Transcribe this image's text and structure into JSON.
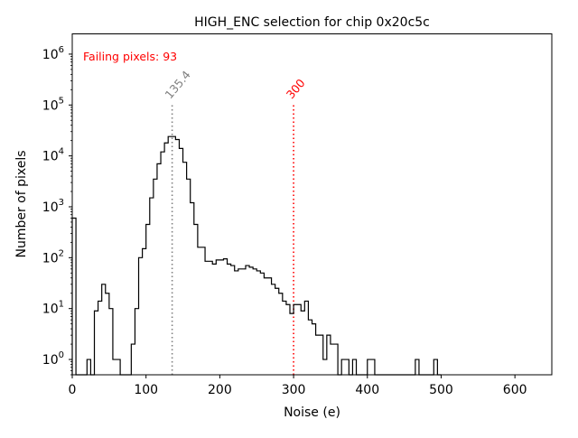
{
  "chart_data": {
    "type": "histogram",
    "title": "HIGH_ENC selection for chip 0x20c5c",
    "xlabel": "Noise (e)",
    "ylabel": "Number of pixels",
    "xlim": [
      0,
      650
    ],
    "ylim": [
      0.5,
      2500000
    ],
    "yscale": "log",
    "x_ticks": [
      0,
      100,
      200,
      300,
      400,
      500,
      600
    ],
    "y_ticks": [
      {
        "value": 1,
        "exp": "0"
      },
      {
        "value": 10,
        "exp": "1"
      },
      {
        "value": 100,
        "exp": "2"
      },
      {
        "value": 1000,
        "exp": "3"
      },
      {
        "value": 10000,
        "exp": "4"
      },
      {
        "value": 100000,
        "exp": "5"
      },
      {
        "value": 1000000,
        "exp": "6"
      }
    ],
    "tick_base": "10",
    "bin_width": 5,
    "bins": [
      [
        0,
        600
      ],
      [
        5,
        0
      ],
      [
        10,
        0
      ],
      [
        15,
        0
      ],
      [
        20,
        1
      ],
      [
        25,
        0
      ],
      [
        30,
        9
      ],
      [
        35,
        14
      ],
      [
        40,
        30
      ],
      [
        45,
        20
      ],
      [
        50,
        10
      ],
      [
        55,
        1
      ],
      [
        60,
        1
      ],
      [
        65,
        0
      ],
      [
        70,
        0
      ],
      [
        75,
        0
      ],
      [
        80,
        2
      ],
      [
        85,
        10
      ],
      [
        90,
        100
      ],
      [
        95,
        150
      ],
      [
        100,
        450
      ],
      [
        105,
        1500
      ],
      [
        110,
        3500
      ],
      [
        115,
        7000
      ],
      [
        120,
        12000
      ],
      [
        125,
        18000
      ],
      [
        130,
        24000
      ],
      [
        135,
        24000
      ],
      [
        140,
        21000
      ],
      [
        145,
        14000
      ],
      [
        150,
        7500
      ],
      [
        155,
        3500
      ],
      [
        160,
        1200
      ],
      [
        165,
        450
      ],
      [
        170,
        160
      ],
      [
        175,
        160
      ],
      [
        180,
        85
      ],
      [
        185,
        85
      ],
      [
        190,
        75
      ],
      [
        195,
        90
      ],
      [
        200,
        90
      ],
      [
        205,
        95
      ],
      [
        210,
        75
      ],
      [
        215,
        70
      ],
      [
        220,
        55
      ],
      [
        225,
        60
      ],
      [
        230,
        60
      ],
      [
        235,
        70
      ],
      [
        240,
        65
      ],
      [
        245,
        60
      ],
      [
        250,
        55
      ],
      [
        255,
        50
      ],
      [
        260,
        40
      ],
      [
        265,
        40
      ],
      [
        270,
        30
      ],
      [
        275,
        25
      ],
      [
        280,
        20
      ],
      [
        285,
        14
      ],
      [
        290,
        12
      ],
      [
        295,
        8
      ],
      [
        300,
        12
      ],
      [
        305,
        12
      ],
      [
        310,
        9
      ],
      [
        315,
        14
      ],
      [
        320,
        6
      ],
      [
        325,
        5
      ],
      [
        330,
        3
      ],
      [
        335,
        3
      ],
      [
        340,
        1
      ],
      [
        345,
        3
      ],
      [
        350,
        2
      ],
      [
        355,
        2
      ],
      [
        360,
        0
      ],
      [
        365,
        1
      ],
      [
        370,
        1
      ],
      [
        375,
        0
      ],
      [
        380,
        1
      ],
      [
        385,
        0
      ],
      [
        390,
        0
      ],
      [
        395,
        0
      ],
      [
        400,
        1
      ],
      [
        405,
        1
      ],
      [
        410,
        0
      ],
      [
        415,
        0
      ],
      [
        420,
        0
      ],
      [
        425,
        0
      ],
      [
        430,
        0
      ],
      [
        435,
        0
      ],
      [
        440,
        0
      ],
      [
        445,
        0
      ],
      [
        450,
        0
      ],
      [
        455,
        0
      ],
      [
        460,
        0
      ],
      [
        465,
        1
      ],
      [
        470,
        0
      ],
      [
        475,
        0
      ],
      [
        480,
        0
      ],
      [
        485,
        0
      ],
      [
        490,
        1
      ],
      [
        495,
        0
      ]
    ],
    "vlines": [
      {
        "x": 135.4,
        "label": "135.4",
        "color": "#808080"
      },
      {
        "x": 300,
        "label": "300",
        "color": "#ff0000"
      }
    ],
    "annotation": {
      "text": "Failing pixels: 93",
      "color": "#ff0000"
    }
  }
}
